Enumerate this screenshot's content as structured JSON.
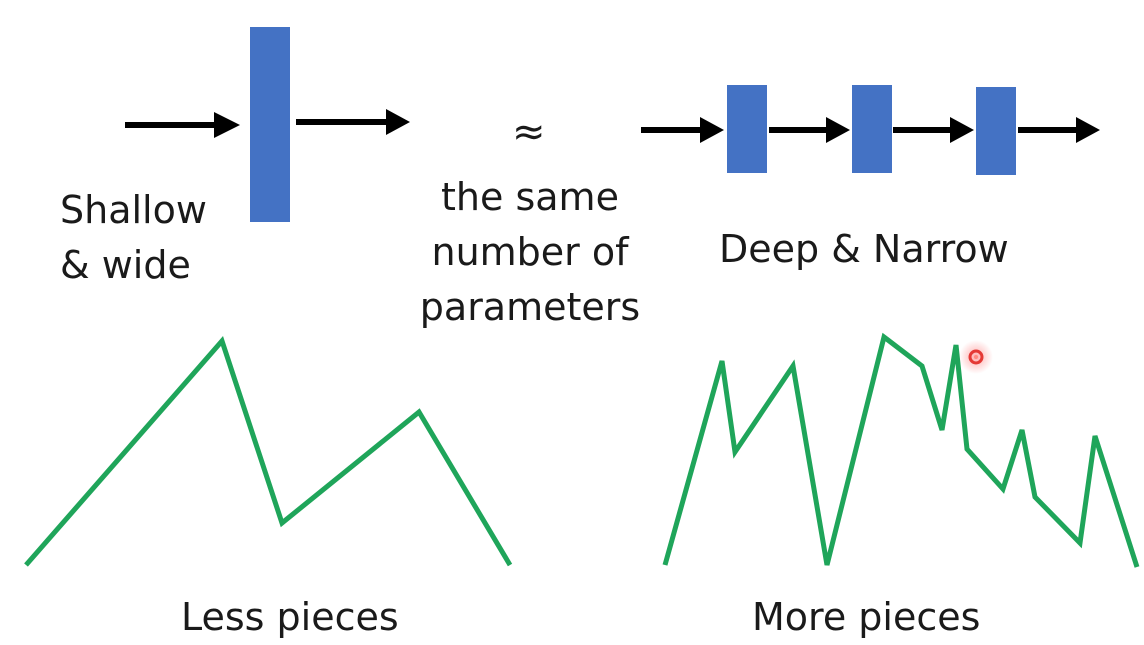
{
  "top": {
    "shallow_label_line1": "Shallow",
    "shallow_label_line2": "& wide",
    "approx_symbol": "≈",
    "middle_line1": "the same",
    "middle_line2": "number of",
    "middle_line3": "parameters",
    "deep_label": "Deep & Narrow"
  },
  "bottom": {
    "less_label": "Less pieces",
    "more_label": "More pieces"
  },
  "colors": {
    "block": "#4472c4",
    "arrow": "#000000",
    "curve": "#1fa55a",
    "pointer": "#e53935"
  },
  "icons": {
    "arrow": "right-arrow-icon",
    "pointer": "laser-pointer-icon"
  }
}
